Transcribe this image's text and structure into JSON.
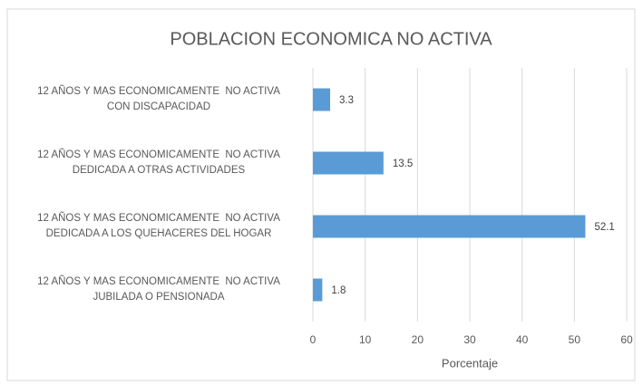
{
  "chart_data": {
    "type": "bar",
    "orientation": "horizontal",
    "title": "POBLACION ECONOMICA NO ACTIVA",
    "x_label": "Porcentaje",
    "categories": [
      "12 AÑOS Y MAS ECONOMICAMENTE  NO ACTIVA\nCON DISCAPACIDAD",
      "12 AÑOS Y MAS ECONOMICAMENTE  NO ACTIVA\nDEDICADA A OTRAS ACTIVIDADES",
      "12 AÑOS Y MAS ECONOMICAMENTE  NO ACTIVA\nDEDICADA A LOS QUEHACERES DEL HOGAR",
      "12 AÑOS Y MAS ECONOMICAMENTE  NO ACTIVA\nJUBILADA O PENSIONADA"
    ],
    "values": [
      3.3,
      13.5,
      52.1,
      1.8
    ],
    "color": "#5b9bd5",
    "xlim": [
      0,
      60
    ],
    "xticks": [
      0,
      10,
      20,
      30,
      40,
      50,
      60
    ],
    "grid": true
  }
}
